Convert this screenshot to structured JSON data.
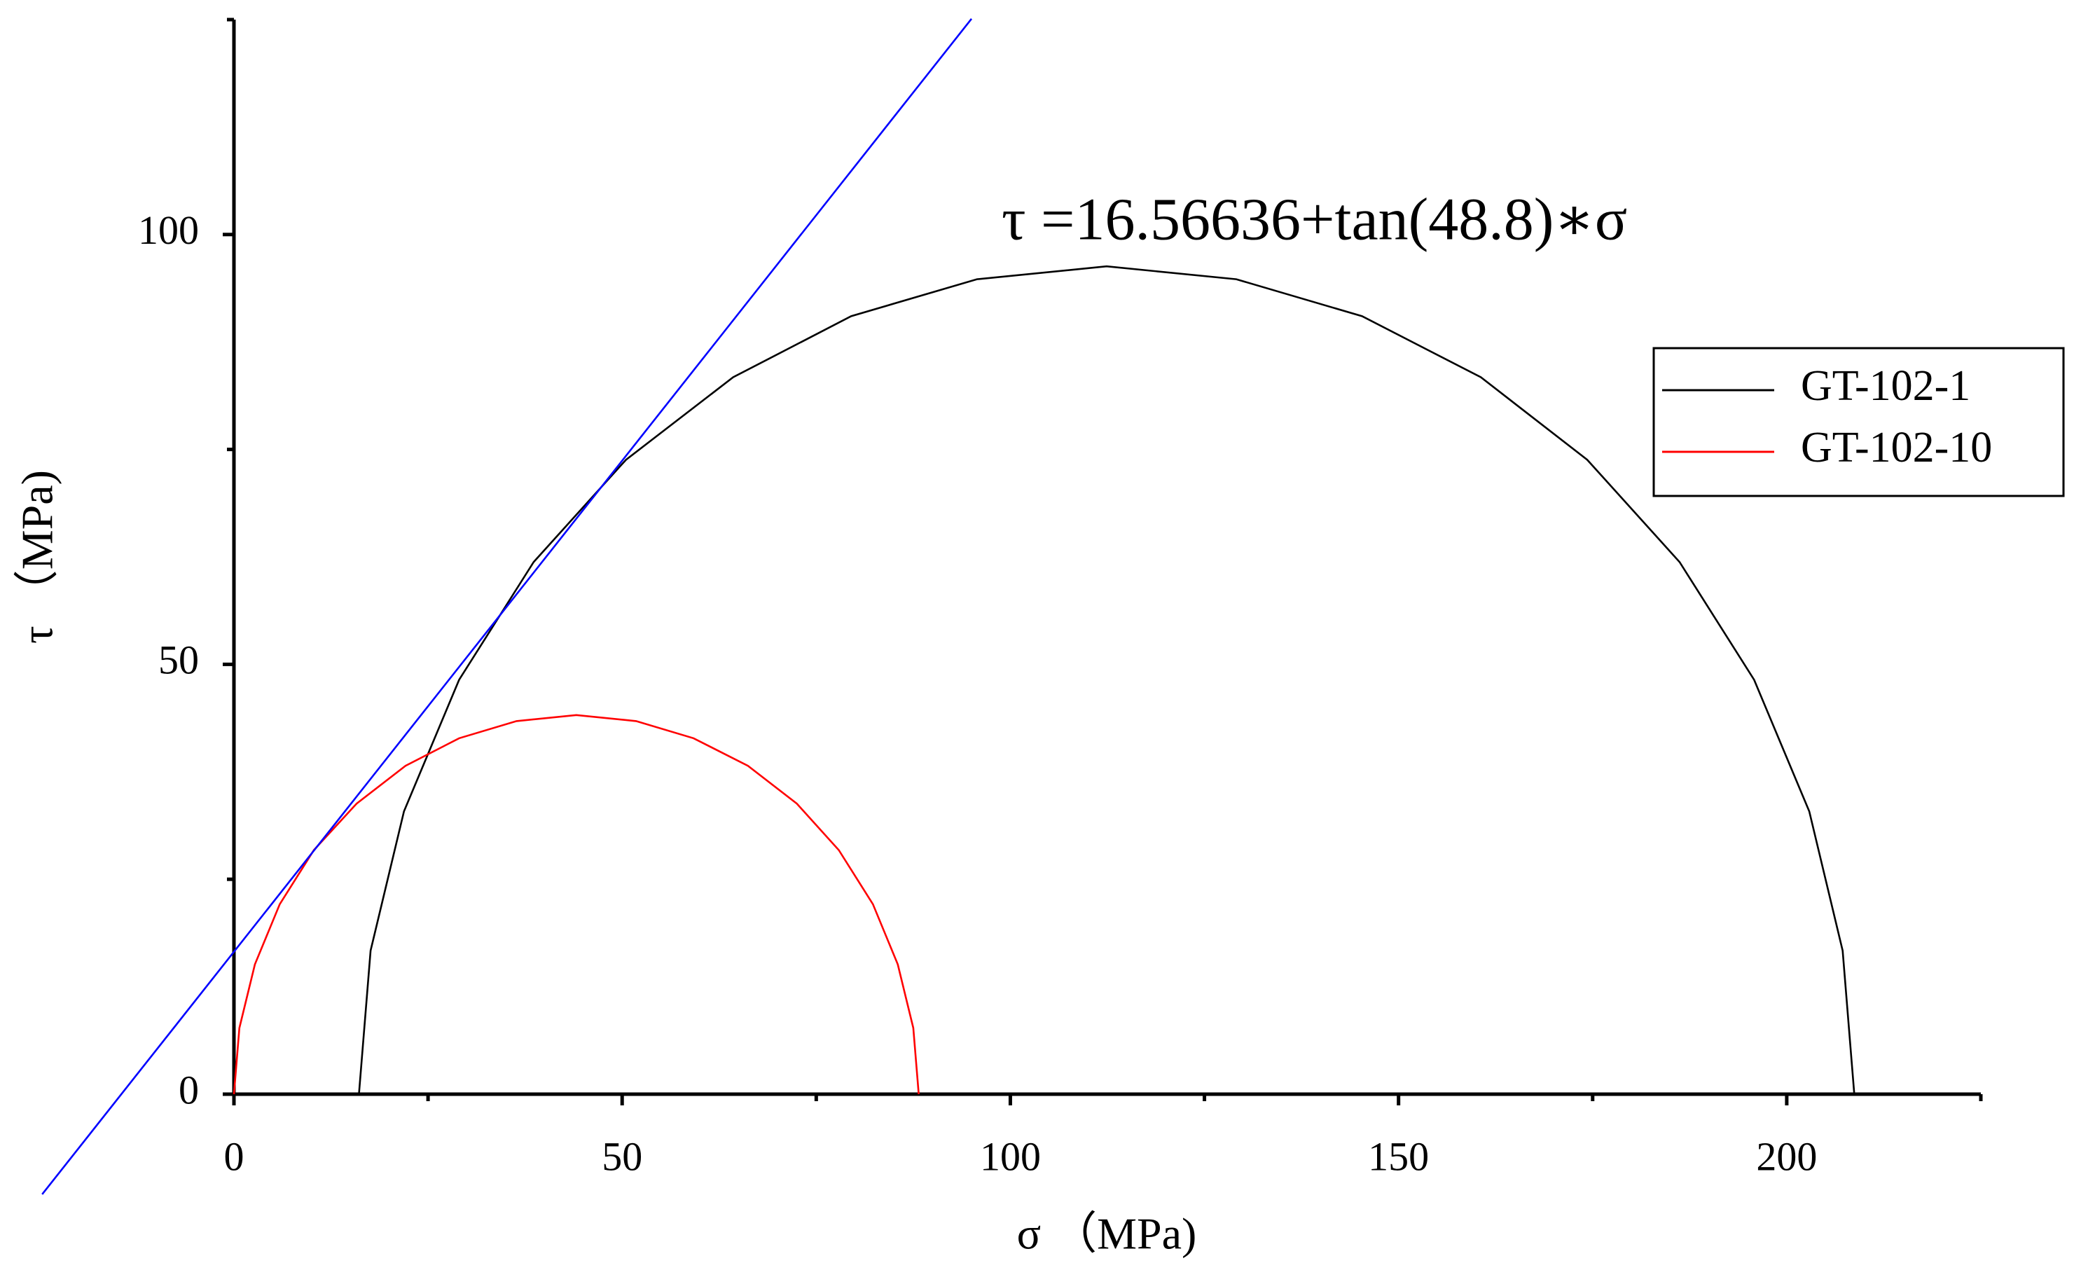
{
  "chart_data": {
    "type": "line",
    "annotation": "τ =16.56636+tan(48.8)∗σ",
    "x_label": "σ （MPa)",
    "y_label": "τ （MPa)",
    "xlim": [
      0,
      225
    ],
    "ylim": [
      0,
      125
    ],
    "xticks": [
      0,
      50,
      100,
      150,
      200
    ],
    "yticks": [
      0,
      50,
      100
    ],
    "xminor": [
      25,
      75,
      125,
      175,
      225
    ],
    "yminor": [
      25,
      75,
      125
    ],
    "grid": false,
    "legend": "right",
    "series": [
      {
        "name": "GT-102-1",
        "color": "#000000",
        "x": [
          16.1,
          17.6,
          21.9,
          29.0,
          38.6,
          50.5,
          64.3,
          79.5,
          95.7,
          112.4,
          129.1,
          145.3,
          160.6,
          174.3,
          186.2,
          195.8,
          202.9,
          207.2,
          208.7
        ],
        "values": [
          0,
          16.7,
          32.9,
          48.2,
          61.9,
          73.8,
          83.4,
          90.5,
          94.8,
          96.3,
          94.8,
          90.5,
          83.4,
          73.8,
          61.9,
          48.2,
          32.9,
          16.7,
          0
        ]
      },
      {
        "name": "GT-102-10",
        "color": "#ff0000",
        "x": [
          0,
          0.7,
          2.7,
          5.9,
          10.3,
          15.8,
          22.1,
          29.0,
          36.4,
          44.1,
          51.8,
          59.2,
          66.2,
          72.5,
          77.9,
          82.3,
          85.5,
          87.5,
          88.2
        ],
        "values": [
          0,
          7.7,
          15.1,
          22.1,
          28.4,
          33.8,
          38.2,
          41.4,
          43.4,
          44.1,
          43.4,
          41.4,
          38.2,
          33.8,
          28.4,
          22.1,
          15.1,
          7.7,
          0
        ]
      },
      {
        "color": "#0000ff",
        "x": [
          -24.7,
          95
        ],
        "values": [
          -11.65,
          125.1
        ]
      }
    ]
  }
}
